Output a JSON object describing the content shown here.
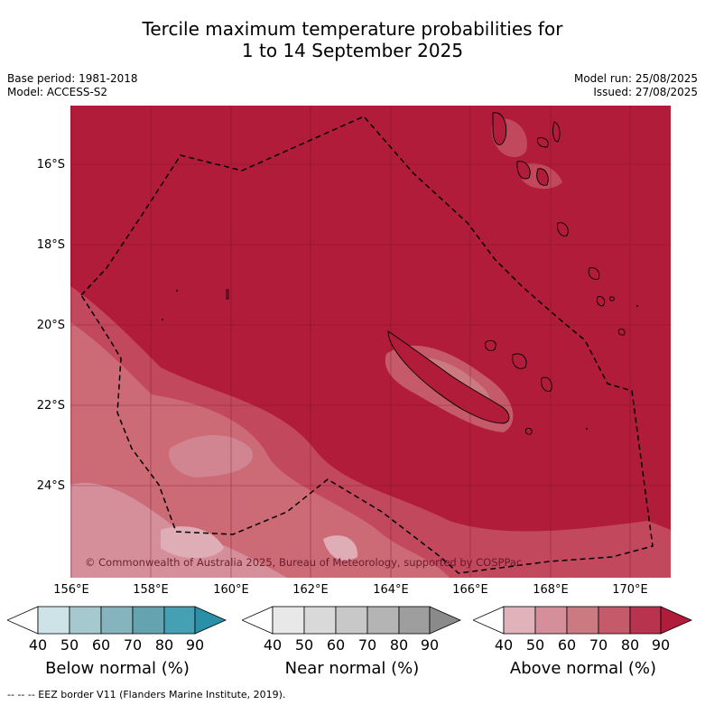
{
  "title_line1": "Tercile maximum temperature probabilities for",
  "title_line2": "1 to 14 September 2025",
  "meta": {
    "base_period": "Base period: 1981-2018",
    "model": "Model: ACCESS-S2",
    "model_run": "Model run: 25/08/2025",
    "issued": "Issued: 27/08/2025"
  },
  "map": {
    "lat_labels": [
      "16°S",
      "18°S",
      "20°S",
      "22°S",
      "24°S"
    ],
    "lon_labels": [
      "156°E",
      "158°E",
      "160°E",
      "162°E",
      "164°E",
      "166°E",
      "168°E",
      "170°E"
    ],
    "copyright": "© Commonwealth of Australia 2025, Bureau of Meteorology, supported by COSPPac",
    "background_color": "#b01c3a"
  },
  "colorbars": [
    {
      "label": "Below normal (%)",
      "ticks": [
        "40",
        "50",
        "60",
        "70",
        "80",
        "90"
      ],
      "colors": [
        "#ffffff",
        "#cde3e8",
        "#a6c8cf",
        "#86b4be",
        "#66a3b1",
        "#44a0b2",
        "#2a90a8"
      ]
    },
    {
      "label": "Near normal (%)",
      "ticks": [
        "40",
        "50",
        "60",
        "70",
        "80",
        "90"
      ],
      "colors": [
        "#ffffff",
        "#e8e8e8",
        "#d9d9d9",
        "#c8c8c8",
        "#b4b4b4",
        "#9e9e9e",
        "#8a8a8a"
      ]
    },
    {
      "label": "Above normal (%)",
      "ticks": [
        "40",
        "50",
        "60",
        "70",
        "80",
        "90"
      ],
      "colors": [
        "#ffffff",
        "#e0b3bb",
        "#d58f9a",
        "#cc7a82",
        "#c45a6a",
        "#b8334d",
        "#b01c3a"
      ]
    }
  ],
  "footer": "--  --  -- EEZ border V11 (Flanders Marine Institute, 2019)."
}
